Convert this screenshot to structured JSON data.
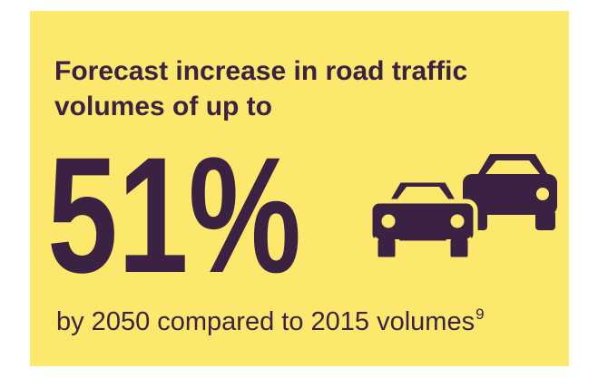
{
  "heading_lines": [
    "Forecast increase in road traffic",
    "volumes of up to"
  ],
  "figure": "51%",
  "caption": "by 2050 compared to 2015 volumes",
  "footnote": "9"
}
